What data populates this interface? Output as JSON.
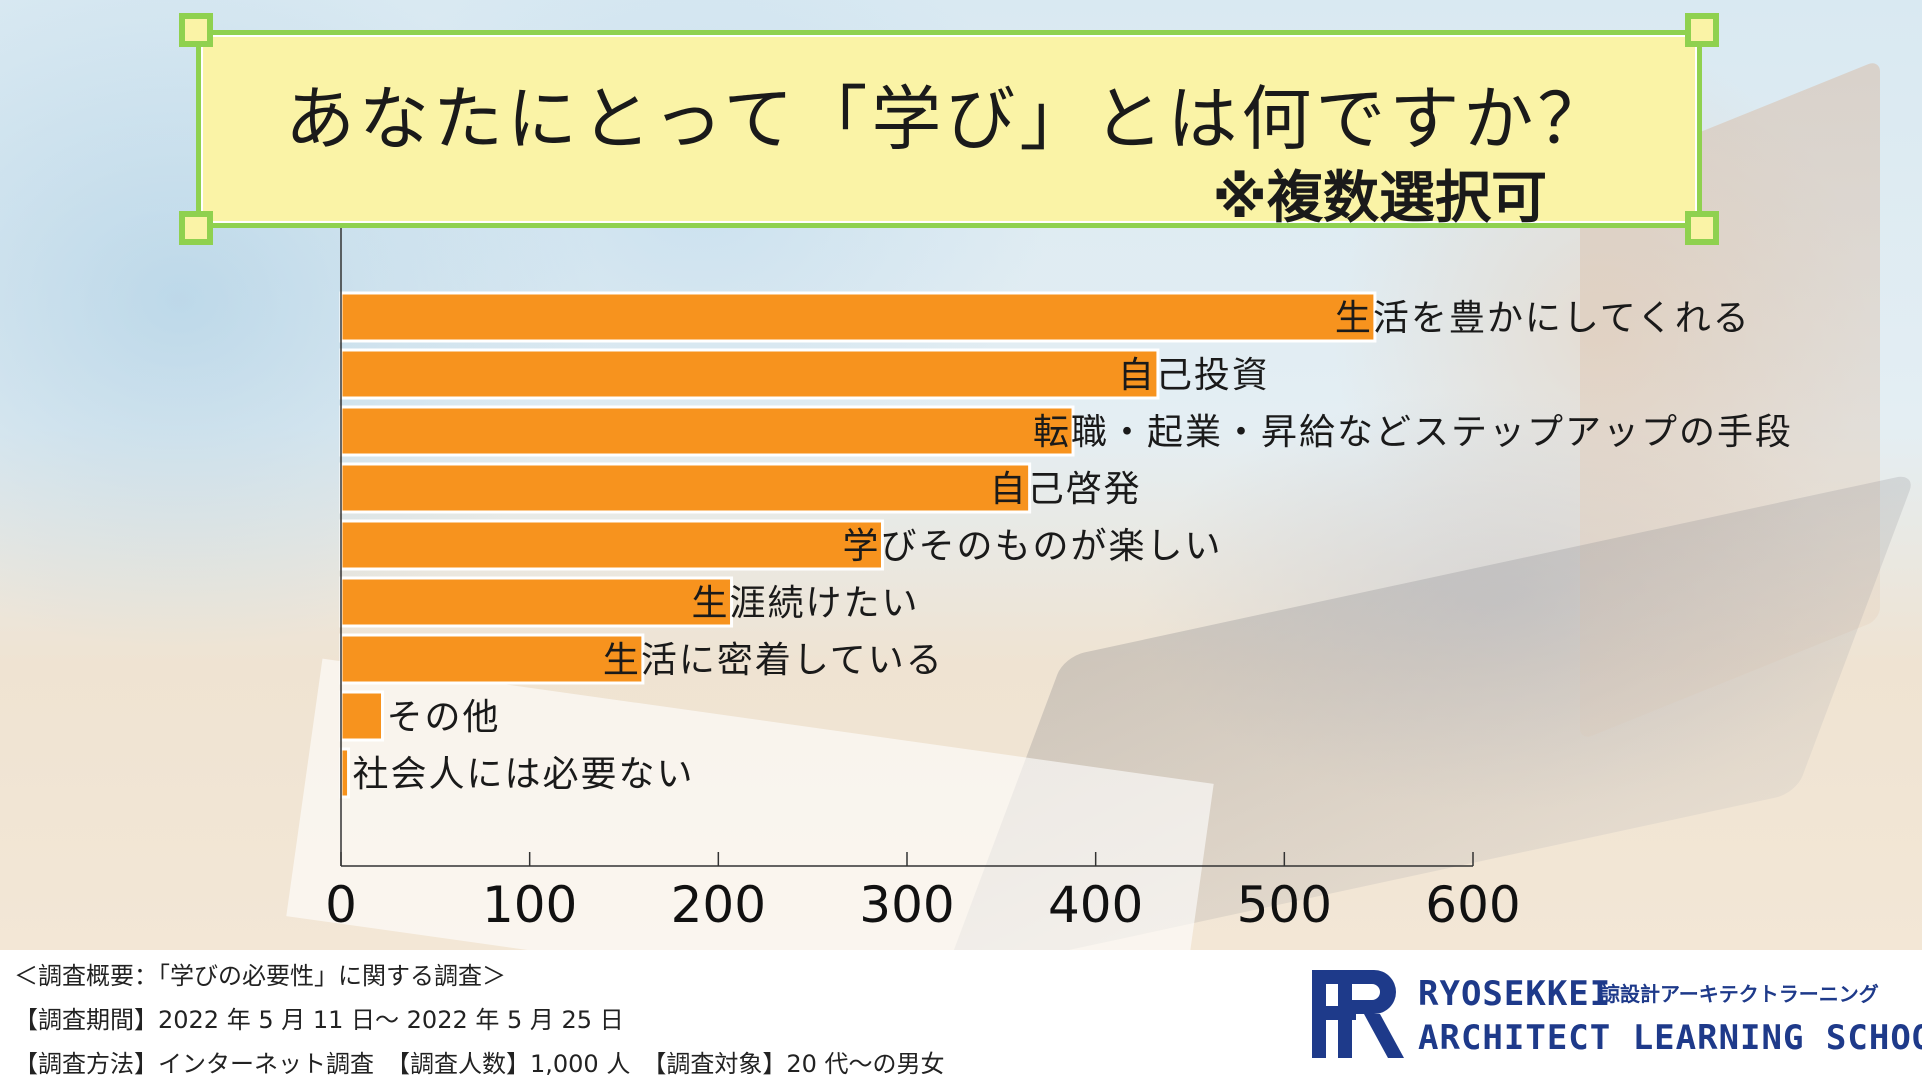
{
  "colors": {
    "bar": "#f7931e",
    "bar_stroke": "#ffffff",
    "axis": "#333333",
    "banner_fill": "#faf3a6",
    "banner_border": "#8fd14f",
    "logo": "#1e3a8a"
  },
  "banner": {
    "title": "あなたにとって「学び」とは何ですか？",
    "subtitle": "※複数選択可"
  },
  "chart_data": {
    "type": "bar",
    "orientation": "horizontal",
    "title": "あなたにとって「学び」とは何ですか？",
    "subtitle": "※複数選択可",
    "categories": [
      "生活を豊かにしてくれる",
      "自己投資",
      "転職・起業・昇給などステップアップの手段",
      "自己啓発",
      "学びそのものが楽しい",
      "生涯続けたい",
      "生活に密着している",
      "その他",
      "社会人には必要ない"
    ],
    "values": [
      548,
      433,
      388,
      365,
      287,
      207,
      160,
      22,
      4
    ],
    "xlim": [
      0,
      600
    ],
    "xticks": [
      "0",
      "100",
      "200",
      "300",
      "400",
      "500",
      "600"
    ],
    "grid": false,
    "legend": "none"
  },
  "footer": {
    "survey_title": "＜調査概要：「学びの必要性」に関する調査＞",
    "period": "【調査期間】2022 年 5 月 11 日～ 2022 年 5 月 25 日",
    "method": "【調査方法】インターネット調査　【調査人数】1,000 人　【調査対象】20 代～の男女"
  },
  "logo": {
    "mark_icon": "rr-logo-icon",
    "line1": "RYOSEKKEI",
    "line1_jp": "諒設計アーキテクトラーニング",
    "line2": "ARCHITECT LEARNING SCHOOL"
  }
}
